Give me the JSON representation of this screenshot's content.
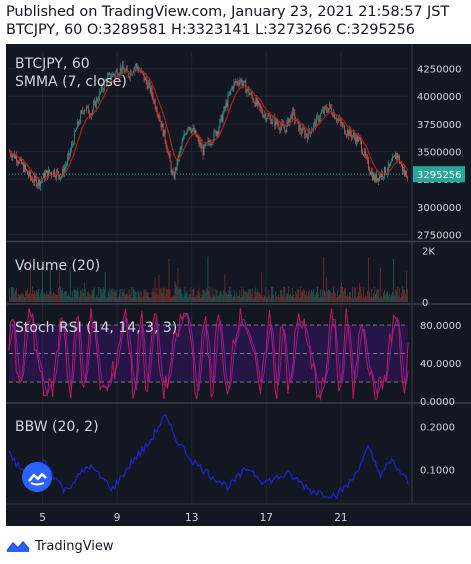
{
  "header": {
    "line1": "Published on TradingView.com, January 23, 2021 21:58:57 JST",
    "line2": "BTCJPY, 60 O:3289581 H:3323141 L:3273266 C:3295256"
  },
  "footer": {
    "brand": "TradingView"
  },
  "colors": {
    "background": "#131722",
    "candle_up": "#26a69a",
    "candle_down": "#ef5350",
    "smma": "#b71c1c",
    "last_price_line": "#26a69a",
    "stoch_k": "#c2185b",
    "stoch_d": "#7b1fa2",
    "stoch_band": "#4a148c",
    "bbw": "#1e22c7",
    "axis_text": "#d1d4dc"
  },
  "chart_data": [
    {
      "type": "candlestick",
      "title": "BTCJPY, 60",
      "legend": "SMMA (7, close)",
      "ylim": [
        2700000,
        4400000
      ],
      "yticks": [
        2750000,
        3000000,
        3250000,
        3500000,
        3750000,
        4000000,
        4250000
      ],
      "ytick_labels": [
        "2750000",
        "3000000",
        "3250000",
        "3500000",
        "3750000",
        "4000000",
        "4250000"
      ],
      "last_price": 3295256,
      "last_price_label": "3295256",
      "xlim": [
        3.2,
        24.6
      ],
      "xticks": [
        5,
        9,
        13,
        17,
        21
      ],
      "xtick_labels": [
        "5",
        "9",
        "13",
        "17",
        "21"
      ],
      "x": [
        3.2,
        3.6,
        4.0,
        4.4,
        4.8,
        5.2,
        5.6,
        6.0,
        6.4,
        6.8,
        7.2,
        7.6,
        8.0,
        8.4,
        8.8,
        9.2,
        9.6,
        10.0,
        10.4,
        10.8,
        11.2,
        11.6,
        12.0,
        12.4,
        12.8,
        13.2,
        13.6,
        14.0,
        14.4,
        14.8,
        15.2,
        15.6,
        16.0,
        16.4,
        16.8,
        17.2,
        17.6,
        18.0,
        18.4,
        18.8,
        19.2,
        19.6,
        20.0,
        20.4,
        20.8,
        21.2,
        21.6,
        22.0,
        22.4,
        22.8,
        23.2,
        23.6,
        24.0,
        24.4
      ],
      "close": [
        3500000,
        3450000,
        3350000,
        3250000,
        3220000,
        3300000,
        3320000,
        3280000,
        3450000,
        3700000,
        3900000,
        3850000,
        4000000,
        4150000,
        4200000,
        4250000,
        4200000,
        4280000,
        4180000,
        4050000,
        3850000,
        3600000,
        3250000,
        3520000,
        3750000,
        3650000,
        3500000,
        3600000,
        3700000,
        3900000,
        4100000,
        4150000,
        4050000,
        3950000,
        3850000,
        3800000,
        3750000,
        3700000,
        3850000,
        3700000,
        3650000,
        3750000,
        3850000,
        3900000,
        3800000,
        3700000,
        3650000,
        3600000,
        3400000,
        3250000,
        3300000,
        3350000,
        3480000,
        3300000
      ]
    },
    {
      "type": "bar",
      "title": "Volume (20)",
      "ylim": [
        0,
        2300
      ],
      "yticks": [
        0,
        2000
      ],
      "ytick_labels": [
        "0",
        "2K"
      ]
    },
    {
      "type": "line",
      "title": "Stoch RSI (14, 14, 3, 3)",
      "ylim": [
        0,
        100
      ],
      "band": [
        20,
        80
      ],
      "yticks": [
        0,
        40,
        80
      ],
      "ytick_labels": [
        "0.0000",
        "40.0000",
        "80.0000"
      ]
    },
    {
      "type": "line",
      "title": "BBW (20, 2)",
      "ylim": [
        0.02,
        0.25
      ],
      "yticks": [
        0.1,
        0.2
      ],
      "ytick_labels": [
        "0.1000",
        "0.2000"
      ]
    }
  ]
}
